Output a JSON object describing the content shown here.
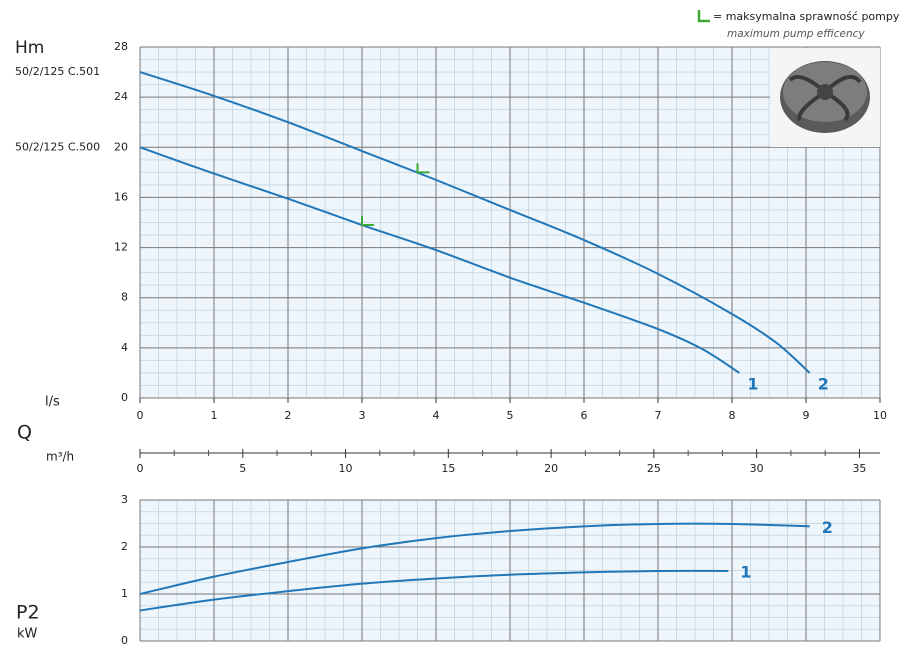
{
  "legend": {
    "text": "= maksymalna sprawność pompy",
    "subtext": "maximum pump efficency",
    "color": "#3aaa35"
  },
  "q_label": "Q",
  "chart_data": [
    {
      "type": "line",
      "y_label": "Hm",
      "x_label": "l/s",
      "xlim": [
        0,
        10
      ],
      "xticks": [
        0,
        1,
        2,
        3,
        4,
        5,
        6,
        7,
        8,
        9,
        10
      ],
      "ylim": [
        0,
        28
      ],
      "yticks": [
        0,
        4,
        8,
        12,
        16,
        20,
        24,
        28
      ],
      "grid": true,
      "series": [
        {
          "name": "1",
          "model": "50/2/125 C.500",
          "color": "#2277b8",
          "x": [
            0,
            1,
            2,
            3,
            4,
            5,
            6,
            7,
            7.6,
            8.1
          ],
          "values": [
            20,
            17.9,
            15.9,
            13.8,
            11.8,
            9.6,
            7.6,
            5.5,
            3.9,
            2.0
          ],
          "efficiency_point": {
            "x": 3.0,
            "value": 13.8
          }
        },
        {
          "name": "2",
          "model": "50/2/125 C.501",
          "color": "#2277b8",
          "x": [
            0,
            1,
            2,
            3,
            4,
            5,
            6,
            7,
            8,
            8.6,
            9.05
          ],
          "values": [
            26,
            24.1,
            22,
            19.7,
            17.4,
            15,
            12.6,
            9.9,
            6.7,
            4.4,
            2.0
          ],
          "efficiency_point": {
            "x": 3.75,
            "value": 18.0
          }
        }
      ]
    },
    {
      "type": "axis",
      "x_label": "m³/h",
      "xlim": [
        0,
        36
      ],
      "xticks": [
        0,
        5,
        10,
        15,
        20,
        25,
        30,
        35
      ]
    },
    {
      "type": "line",
      "y_label": "P2",
      "y_unit": "kW",
      "xlim": [
        0,
        10
      ],
      "xticks": [
        0,
        1,
        2,
        3,
        4,
        5,
        6,
        7,
        8,
        9,
        10
      ],
      "ylim": [
        0,
        3
      ],
      "yticks": [
        0,
        1,
        2,
        3
      ],
      "grid": true,
      "series": [
        {
          "name": "1",
          "color": "#2277b8",
          "x": [
            0,
            1,
            2,
            3,
            4,
            5,
            6,
            7,
            7.95
          ],
          "values": [
            0.65,
            0.88,
            1.06,
            1.22,
            1.33,
            1.41,
            1.46,
            1.49,
            1.49
          ]
        },
        {
          "name": "2",
          "color": "#2277b8",
          "x": [
            0,
            1,
            2,
            3,
            4,
            5,
            6,
            7,
            8,
            9.05
          ],
          "values": [
            1.0,
            1.37,
            1.68,
            1.97,
            2.19,
            2.34,
            2.44,
            2.49,
            2.49,
            2.44
          ]
        }
      ]
    }
  ]
}
